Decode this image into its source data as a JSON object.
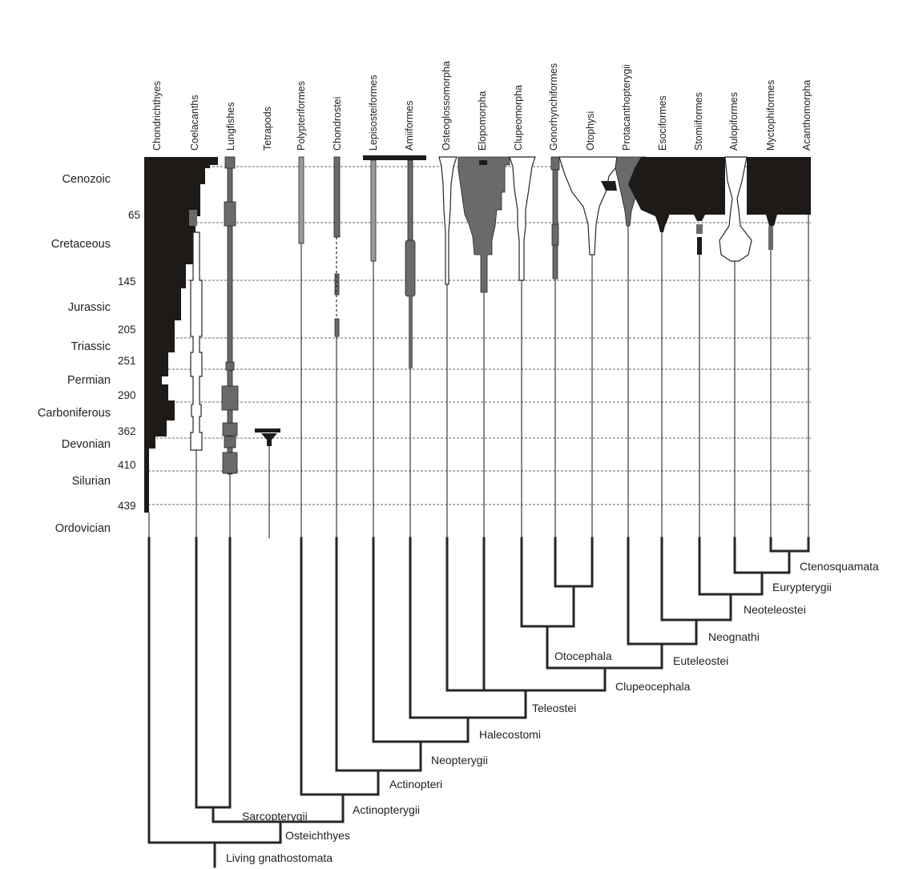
{
  "taxa": [
    "Chondrichthyes",
    "Coelacanths",
    "Lungfishes",
    "Tetrapods",
    "Polypteriformes",
    "Chondrostei",
    "Lepisosteiformes",
    "Amiiformes",
    "Osteoglossomorpha",
    "Elopomorpha",
    "Clupeomorpha",
    "Gonorhynchiformes",
    "Otophysi",
    "Protacanthopterygii",
    "Esociformes",
    "Stomiiformes",
    "Aulopiformes",
    "Myctophiformes",
    "Acanthomorpha"
  ],
  "eras": [
    "Cenozoic",
    "Cretaceous",
    "Jurassic",
    "Triassic",
    "Permian",
    "Carboniferous",
    "Devonian",
    "Silurian",
    "Ordovician"
  ],
  "ages": [
    "65",
    "145",
    "205",
    "251",
    "290",
    "362",
    "410",
    "439"
  ],
  "nodes": {
    "ctenosquamata": "Ctenosquamata",
    "eurypterygii": "Eurypterygii",
    "neoteleostei": "Neoteleostei",
    "neognathi": "Neognathi",
    "otocephala": "Otocephala",
    "euteleostei": "Euteleostei",
    "clupeocephala": "Clupeocephala",
    "teleostei": "Teleostei",
    "halecostomi": "Halecostomi",
    "neopterygii": "Neopterygii",
    "actinopteri": "Actinopteri",
    "actinopterygii": "Actinopterygii",
    "sarcopterygii": "Sarcopterygii",
    "osteichthyes": "Osteichthyes",
    "living_gnathostomata": "Living gnathostomata"
  },
  "colors": {
    "fill_dark": "#1e1a18",
    "fill_gray": "#6a6a6a",
    "line": "#2a2624",
    "dashed": "#9a9a9a"
  }
}
